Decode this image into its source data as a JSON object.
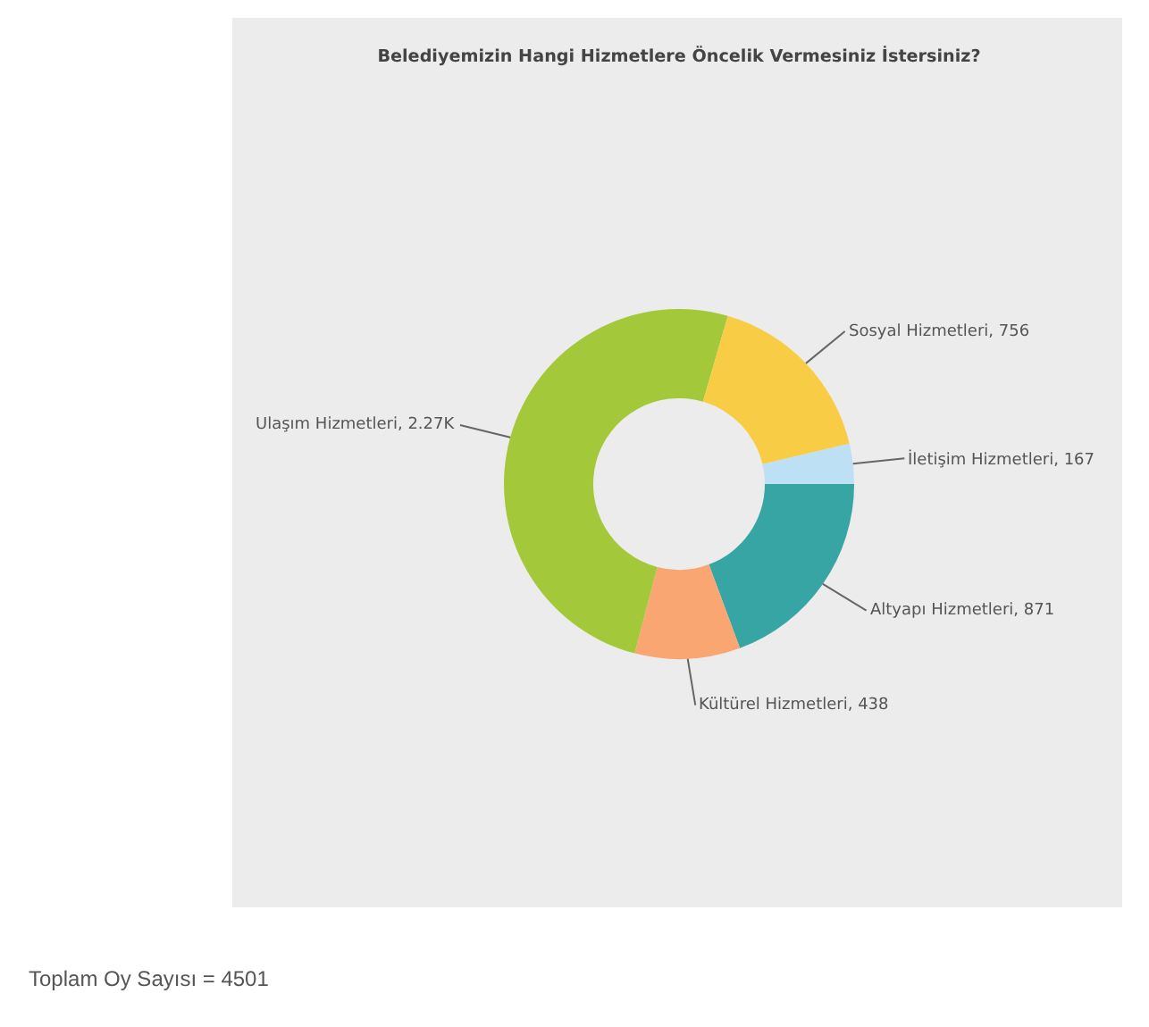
{
  "chart_data": {
    "type": "donut",
    "title": "Belediyemizin Hangi Hizmetlere Öncelik Vermesiniz İstersiniz?",
    "categories": [
      "Altyapı Hizmetleri",
      "Kültürel Hizmetleri",
      "Ulaşım Hizmetleri",
      "Sosyal Hizmetleri",
      "İletişim Hizmetleri"
    ],
    "values": [
      871,
      438,
      2270,
      756,
      167
    ],
    "value_labels": [
      "871",
      "438",
      "2.27K",
      "756",
      "167"
    ],
    "colors": [
      "#36a5a4",
      "#f9a673",
      "#a3c93a",
      "#f8cd45",
      "#bde0f5"
    ],
    "annotations": [
      "Toplam Oy Sayısı = 4501"
    ],
    "legend": false
  }
}
